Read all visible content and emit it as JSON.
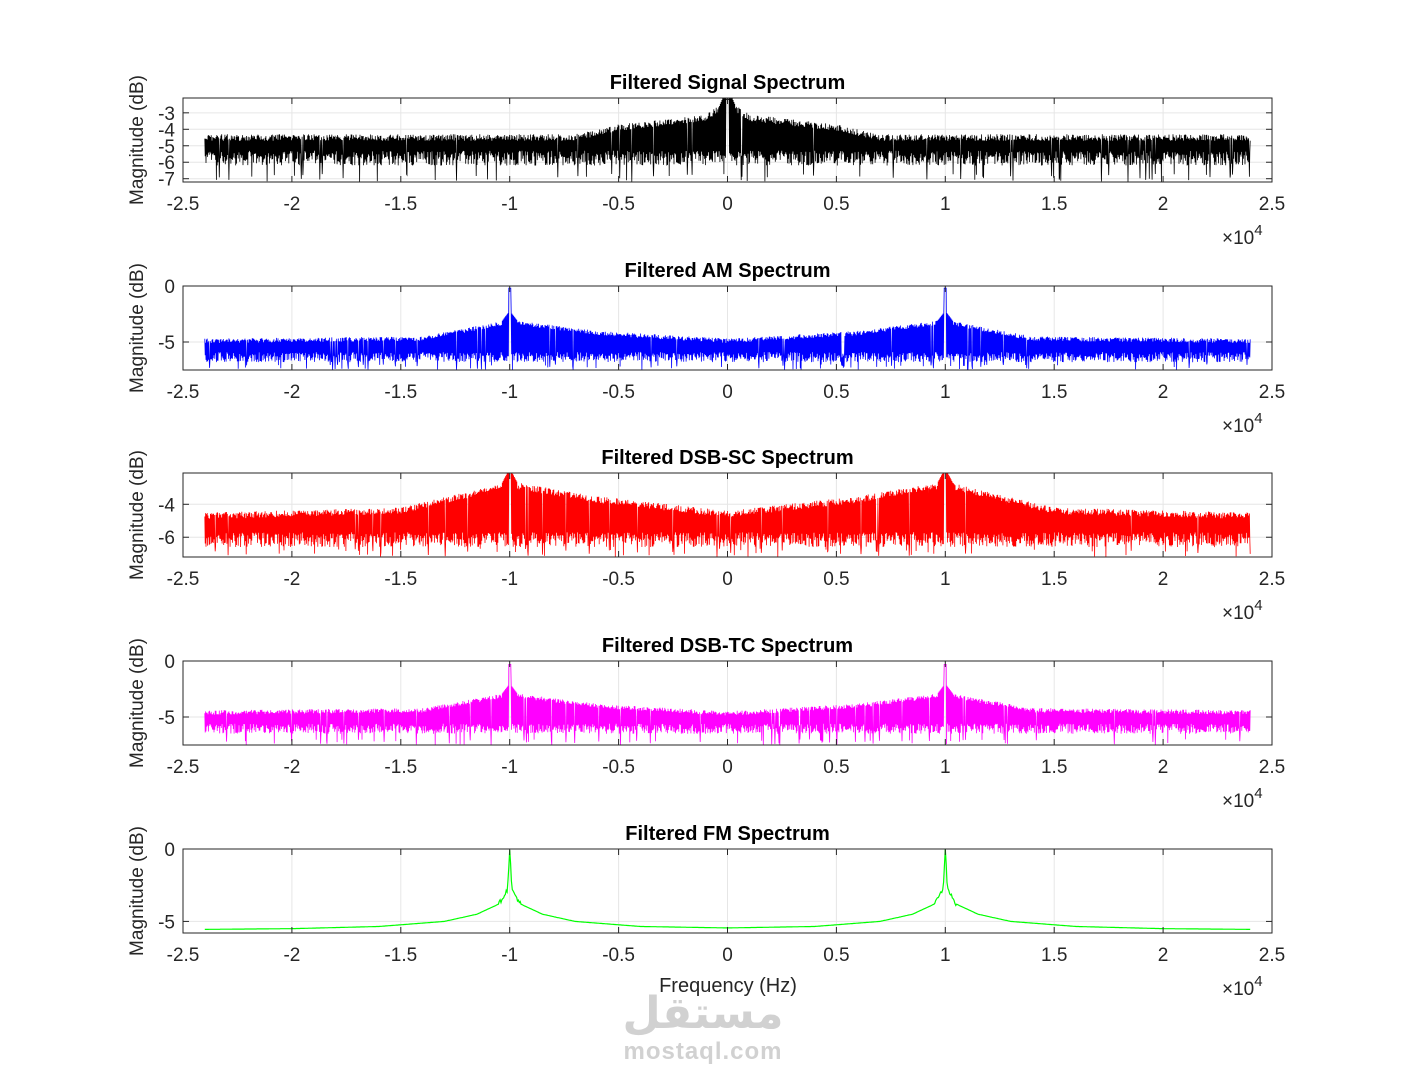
{
  "figure": {
    "xlabel": "Frequency (Hz)",
    "watermark": {
      "logo_text": "مستقل",
      "site": "mostaql.com"
    }
  },
  "chart_data": [
    {
      "type": "line",
      "title": "Filtered Signal Spectrum",
      "ylabel": "Magnitude (dB)",
      "xlabel": "",
      "x_exponent": "×10^4",
      "xlim": [
        -25000,
        25000
      ],
      "ylim": [
        -7.2,
        -2.1
      ],
      "xticks": [
        -25000,
        -20000,
        -15000,
        -10000,
        -5000,
        0,
        5000,
        10000,
        15000,
        20000,
        25000
      ],
      "xtick_labels": [
        "-2.5",
        "-2",
        "-1.5",
        "-1",
        "-0.5",
        "0",
        "0.5",
        "1",
        "1.5",
        "2",
        "2.5"
      ],
      "yticks": [
        -3,
        -4,
        -5,
        -6,
        -7
      ],
      "ytick_labels": [
        "-3",
        "-4",
        "-5",
        "-6",
        "-7"
      ],
      "grid": true,
      "color": "#000000",
      "data_range": [
        -24000,
        24000
      ],
      "baseline_db": -5.1,
      "noise_band_db": [
        -4.3,
        -6.2
      ],
      "peaks": [
        {
          "x": 0,
          "top_db": -2.2
        }
      ],
      "envelope": [
        [
          -24000,
          -4.3
        ],
        [
          -7000,
          -4.3
        ],
        [
          -5000,
          -3.7
        ],
        [
          -3000,
          -3.4
        ],
        [
          -1000,
          -3.1
        ],
        [
          0,
          -2.2
        ],
        [
          1000,
          -3.1
        ],
        [
          3000,
          -3.4
        ],
        [
          5000,
          -3.7
        ],
        [
          7000,
          -4.3
        ],
        [
          24000,
          -4.3
        ]
      ]
    },
    {
      "type": "line",
      "title": "Filtered AM Spectrum",
      "ylabel": "Magnitude (dB)",
      "xlabel": "",
      "x_exponent": "×10^4",
      "xlim": [
        -25000,
        25000
      ],
      "ylim": [
        -7.5,
        0
      ],
      "xticks": [
        -25000,
        -20000,
        -15000,
        -10000,
        -5000,
        0,
        5000,
        10000,
        15000,
        20000,
        25000
      ],
      "xtick_labels": [
        "-2.5",
        "-2",
        "-1.5",
        "-1",
        "-0.5",
        "0",
        "0.5",
        "1",
        "1.5",
        "2",
        "2.5"
      ],
      "yticks": [
        0,
        -5
      ],
      "ytick_labels": [
        "0",
        "-5"
      ],
      "grid": true,
      "color": "#0000ff",
      "data_range": [
        -24000,
        24000
      ],
      "baseline_db": -5.3,
      "noise_band_db": [
        -4.7,
        -6.8
      ],
      "peaks": [
        {
          "x": -10000,
          "top_db": -0.2
        },
        {
          "x": 10000,
          "top_db": -0.2
        }
      ],
      "envelope": [
        [
          -24000,
          -4.7
        ],
        [
          -14000,
          -4.5
        ],
        [
          -10000,
          -3.0
        ],
        [
          -6000,
          -4.0
        ],
        [
          0,
          -4.7
        ],
        [
          6000,
          -4.0
        ],
        [
          10000,
          -3.0
        ],
        [
          14000,
          -4.5
        ],
        [
          24000,
          -4.7
        ]
      ]
    },
    {
      "type": "line",
      "title": "Filtered DSB-SC Spectrum",
      "ylabel": "Magnitude (dB)",
      "xlabel": "",
      "x_exponent": "×10^4",
      "xlim": [
        -25000,
        25000
      ],
      "ylim": [
        -7.2,
        -2.1
      ],
      "xticks": [
        -25000,
        -20000,
        -15000,
        -10000,
        -5000,
        0,
        5000,
        10000,
        15000,
        20000,
        25000
      ],
      "xtick_labels": [
        "-2.5",
        "-2",
        "-1.5",
        "-1",
        "-0.5",
        "0",
        "0.5",
        "1",
        "1.5",
        "2",
        "2.5"
      ],
      "yticks": [
        -4,
        -6
      ],
      "ytick_labels": [
        "-4",
        "-6"
      ],
      "grid": true,
      "color": "#ff0000",
      "data_range": [
        -24000,
        24000
      ],
      "baseline_db": -5.2,
      "noise_band_db": [
        -4.5,
        -6.6
      ],
      "peaks": [
        {
          "x": -10000,
          "top_db": -2.1
        },
        {
          "x": 10000,
          "top_db": -2.1
        }
      ],
      "envelope": [
        [
          -24000,
          -4.5
        ],
        [
          -15000,
          -4.2
        ],
        [
          -10000,
          -2.6
        ],
        [
          -6000,
          -3.5
        ],
        [
          0,
          -4.4
        ],
        [
          6000,
          -3.5
        ],
        [
          10000,
          -2.6
        ],
        [
          15000,
          -4.2
        ],
        [
          24000,
          -4.5
        ]
      ]
    },
    {
      "type": "line",
      "title": "Filtered DSB-TC Spectrum",
      "ylabel": "Magnitude (dB)",
      "xlabel": "",
      "x_exponent": "×10^4",
      "xlim": [
        -25000,
        25000
      ],
      "ylim": [
        -7.5,
        0
      ],
      "xticks": [
        -25000,
        -20000,
        -15000,
        -10000,
        -5000,
        0,
        5000,
        10000,
        15000,
        20000,
        25000
      ],
      "xtick_labels": [
        "-2.5",
        "-2",
        "-1.5",
        "-1",
        "-0.5",
        "0",
        "0.5",
        "1",
        "1.5",
        "2",
        "2.5"
      ],
      "yticks": [
        0,
        -5
      ],
      "ytick_labels": [
        "0",
        "-5"
      ],
      "grid": true,
      "color": "#ff00ff",
      "data_range": [
        -24000,
        24000
      ],
      "baseline_db": -5.0,
      "noise_band_db": [
        -4.4,
        -6.5
      ],
      "peaks": [
        {
          "x": -10000,
          "top_db": -0.3
        },
        {
          "x": 10000,
          "top_db": -0.3
        }
      ],
      "envelope": [
        [
          -24000,
          -4.4
        ],
        [
          -14000,
          -4.2
        ],
        [
          -10000,
          -2.8
        ],
        [
          -6000,
          -3.8
        ],
        [
          0,
          -4.5
        ],
        [
          6000,
          -3.8
        ],
        [
          10000,
          -2.8
        ],
        [
          14000,
          -4.2
        ],
        [
          24000,
          -4.4
        ]
      ]
    },
    {
      "type": "line",
      "title": "Filtered FM Spectrum",
      "ylabel": "Magnitude (dB)",
      "xlabel": "Frequency (Hz)",
      "x_exponent": "×10^4",
      "xlim": [
        -25000,
        25000
      ],
      "ylim": [
        -5.8,
        0
      ],
      "xticks": [
        -25000,
        -20000,
        -15000,
        -10000,
        -5000,
        0,
        5000,
        10000,
        15000,
        20000,
        25000
      ],
      "xtick_labels": [
        "-2.5",
        "-2",
        "-1.5",
        "-1",
        "-0.5",
        "0",
        "0.5",
        "1",
        "1.5",
        "2",
        "2.5"
      ],
      "yticks": [
        0,
        -5
      ],
      "ytick_labels": [
        "0",
        "-5"
      ],
      "grid": true,
      "color": "#00ff00",
      "data_range": [
        -24000,
        24000
      ],
      "smooth_curve": [
        [
          -24000,
          -5.55
        ],
        [
          -20000,
          -5.5
        ],
        [
          -16000,
          -5.35
        ],
        [
          -13000,
          -5.0
        ],
        [
          -11500,
          -4.5
        ],
        [
          -10500,
          -3.8
        ],
        [
          -10100,
          -2.8
        ],
        [
          -10000,
          0
        ],
        [
          -9900,
          -2.8
        ],
        [
          -9500,
          -3.8
        ],
        [
          -8500,
          -4.5
        ],
        [
          -7000,
          -5.0
        ],
        [
          -4000,
          -5.35
        ],
        [
          0,
          -5.45
        ],
        [
          4000,
          -5.35
        ],
        [
          7000,
          -5.0
        ],
        [
          8500,
          -4.5
        ],
        [
          9500,
          -3.8
        ],
        [
          9900,
          -2.8
        ],
        [
          10000,
          0
        ],
        [
          10100,
          -2.8
        ],
        [
          10500,
          -3.8
        ],
        [
          11500,
          -4.5
        ],
        [
          13000,
          -5.0
        ],
        [
          16000,
          -5.35
        ],
        [
          20000,
          -5.5
        ],
        [
          24000,
          -5.55
        ]
      ]
    }
  ]
}
